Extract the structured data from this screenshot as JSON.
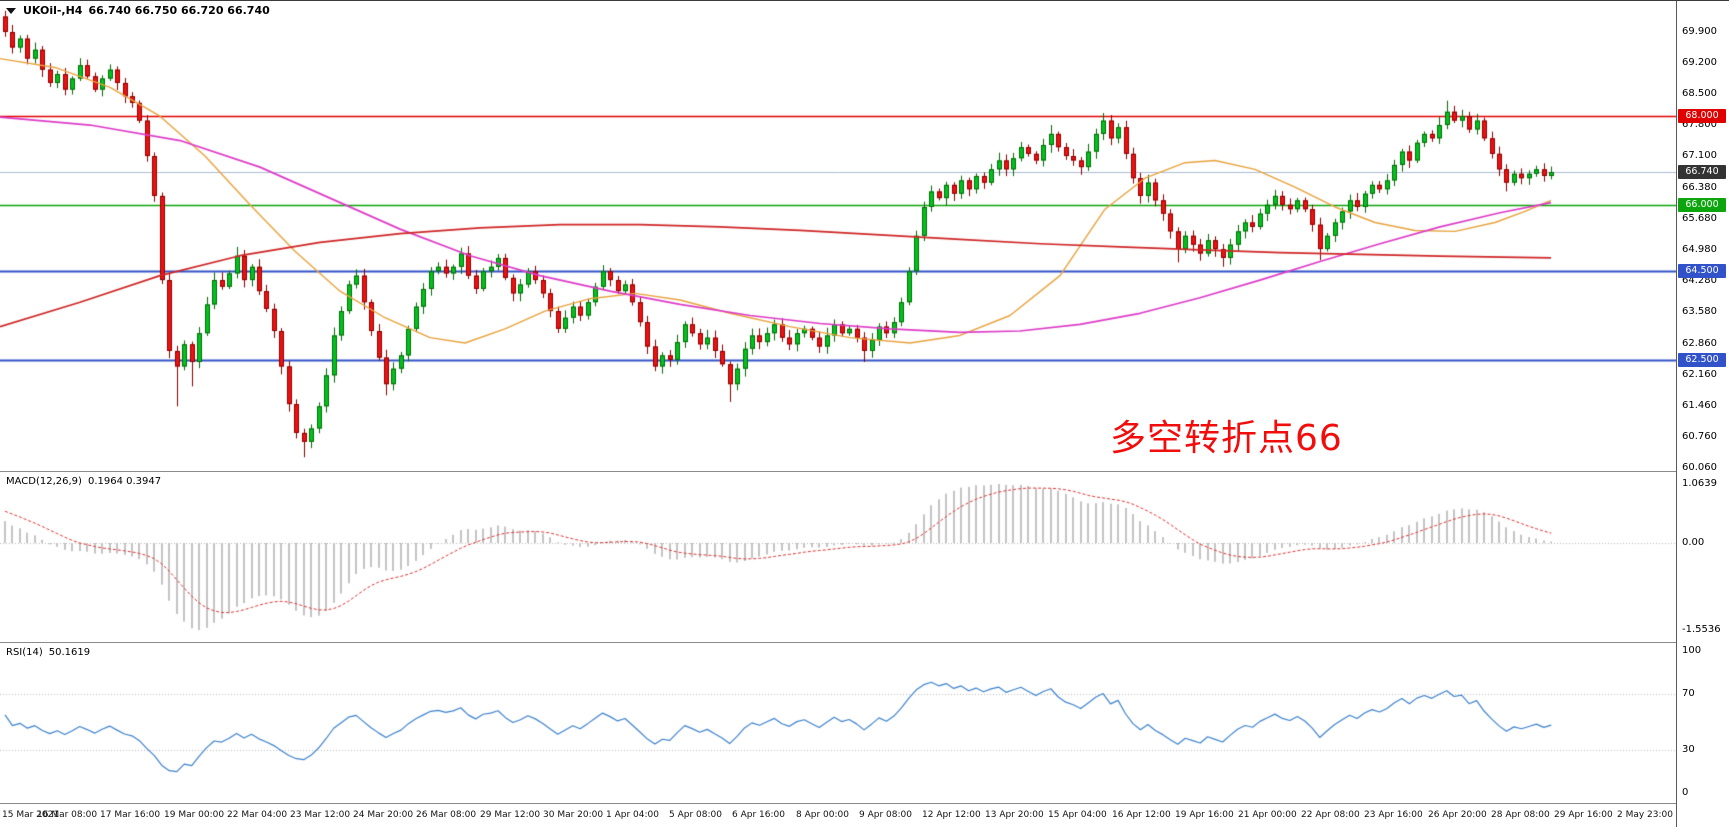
{
  "header": {
    "symbol_period": "UKOil-,H4",
    "ohlc": "66.740 66.750 66.720 66.740"
  },
  "colors": {
    "background": "#ffffff",
    "up_candle_fill": "#00c41e",
    "up_candle_border": "#066906",
    "down_candle_fill": "#f01010",
    "down_candle_border": "#8a0000",
    "ma_fast_orange": "#e8a33d",
    "ma_mid_magenta": "#dd3cc8",
    "ma_slow_red": "#cf2626",
    "macd_histogram": "#c4c4c4",
    "macd_signal": "#e03535",
    "rsi_line": "#3f83cc",
    "level_red": "#e10000",
    "level_green": "#0da50d",
    "level_blue": "#3152c8",
    "current_price_line": "#a9bdd6",
    "current_price_badge_bg": "#333333",
    "grid_dotted": "#bcbcbc",
    "text": "#000000"
  },
  "chart_data": [
    {
      "name": "price",
      "type": "candlestick",
      "symbol": "UKOil-",
      "timeframe": "H4",
      "title_annotation": "多空转折点66",
      "y_range": [
        59.99,
        70.6
      ],
      "y_ticks": [
        "69.900",
        "69.200",
        "68.500",
        "67.800",
        "67.100",
        "66.380",
        "65.680",
        "64.980",
        "64.280",
        "63.580",
        "62.860",
        "62.160",
        "61.460",
        "60.760",
        "60.060"
      ],
      "x_labels": [
        "15 Mar 2021",
        "16 Mar 08:00",
        "17 Mar 16:00",
        "19 Mar 00:00",
        "22 Mar 04:00",
        "23 Mar 12:00",
        "24 Mar 20:00",
        "26 Mar 08:00",
        "29 Mar 12:00",
        "30 Mar 20:00",
        "1 Apr 04:00",
        "5 Apr 08:00",
        "6 Apr 16:00",
        "8 Apr 00:00",
        "9 Apr 08:00",
        "12 Apr 12:00",
        "13 Apr 20:00",
        "15 Apr 04:00",
        "16 Apr 12:00",
        "19 Apr 16:00",
        "21 Apr 00:00",
        "22 Apr 08:00",
        "23 Apr 16:00",
        "26 Apr 20:00",
        "28 Apr 08:00",
        "29 Apr 16:00",
        "2 May 23:00"
      ],
      "first_open": 70.25,
      "closes": [
        69.9,
        69.55,
        69.75,
        69.3,
        69.5,
        69.05,
        68.75,
        68.95,
        68.6,
        68.85,
        69.15,
        68.9,
        68.6,
        68.85,
        69.05,
        68.75,
        68.45,
        68.3,
        67.9,
        67.1,
        66.2,
        64.3,
        62.7,
        62.35,
        62.85,
        62.45,
        63.1,
        63.75,
        64.3,
        64.15,
        64.45,
        64.85,
        64.3,
        64.6,
        64.05,
        63.65,
        63.15,
        62.35,
        61.5,
        60.85,
        60.65,
        60.95,
        61.45,
        62.15,
        63.05,
        63.6,
        64.2,
        64.4,
        63.8,
        63.15,
        62.55,
        61.95,
        62.3,
        62.6,
        63.2,
        63.7,
        64.1,
        64.5,
        64.6,
        64.45,
        64.6,
        64.9,
        64.4,
        64.1,
        64.5,
        64.6,
        64.8,
        64.35,
        64.0,
        64.2,
        64.5,
        64.3,
        64.0,
        63.6,
        63.2,
        63.45,
        63.7,
        63.5,
        63.8,
        64.15,
        64.5,
        64.3,
        64.05,
        64.2,
        63.8,
        63.35,
        62.8,
        62.35,
        62.6,
        62.5,
        62.9,
        63.3,
        63.1,
        62.85,
        63.0,
        62.7,
        62.4,
        61.95,
        62.3,
        62.75,
        63.05,
        62.9,
        63.1,
        63.3,
        63.0,
        62.85,
        63.1,
        63.2,
        63.0,
        62.8,
        63.05,
        63.3,
        63.1,
        63.2,
        63.0,
        62.7,
        62.95,
        63.25,
        63.1,
        63.35,
        63.8,
        64.5,
        65.3,
        65.95,
        66.3,
        66.15,
        66.45,
        66.25,
        66.55,
        66.35,
        66.65,
        66.5,
        66.8,
        67.0,
        66.8,
        67.05,
        67.3,
        67.15,
        67.0,
        67.35,
        67.6,
        67.3,
        67.1,
        67.0,
        66.85,
        67.2,
        67.6,
        67.9,
        67.5,
        67.75,
        67.15,
        66.6,
        66.2,
        66.5,
        66.1,
        65.8,
        65.4,
        65.0,
        65.3,
        65.1,
        64.9,
        65.2,
        65.0,
        64.8,
        65.1,
        65.4,
        65.6,
        65.5,
        65.8,
        66.0,
        66.2,
        66.0,
        65.9,
        66.1,
        65.9,
        65.55,
        65.0,
        65.3,
        65.6,
        65.85,
        66.1,
        65.95,
        66.25,
        66.45,
        66.35,
        66.55,
        66.9,
        67.2,
        67.0,
        67.4,
        67.6,
        67.5,
        67.8,
        68.1,
        67.9,
        68.0,
        67.7,
        67.9,
        67.5,
        67.15,
        66.8,
        66.5,
        66.7,
        66.6,
        66.7,
        66.8,
        66.65,
        66.74
      ],
      "wick_extremes": {
        "23": {
          "low": 61.45
        },
        "25": {
          "low": 61.9
        },
        "31": {
          "high": 65.05
        },
        "40": {
          "low": 60.3
        },
        "51": {
          "low": 61.7
        },
        "97": {
          "low": 61.55
        },
        "115": {
          "low": 62.45
        },
        "140": {
          "high": 67.8
        },
        "147": {
          "high": 68.05
        },
        "157": {
          "low": 64.7
        },
        "163": {
          "low": 64.6
        },
        "176": {
          "low": 64.75
        },
        "193": {
          "high": 68.35
        },
        "201": {
          "low": 66.3
        }
      },
      "horizontal_levels": [
        {
          "price": 68.0,
          "label": "68.000",
          "color_key": "level_red",
          "width": 1.5
        },
        {
          "price": 66.0,
          "label": "66.000",
          "color_key": "level_green",
          "width": 1.5
        },
        {
          "price": 64.5,
          "label": "64.500",
          "color_key": "level_blue",
          "width": 2
        },
        {
          "price": 62.5,
          "label": "62.500",
          "color_key": "level_blue",
          "width": 2
        }
      ],
      "current_price": {
        "price": 66.74,
        "label": "66.740"
      },
      "moving_averages": [
        {
          "name": "ma-fast-orange",
          "color_key": "ma_fast_orange",
          "width": 1.4,
          "points": [
            [
              0,
              69.3
            ],
            [
              55,
              69.1
            ],
            [
              110,
              68.65
            ],
            [
              160,
              68.0
            ],
            [
              205,
              67.1
            ],
            [
              250,
              66.0
            ],
            [
              295,
              64.95
            ],
            [
              340,
              64.05
            ],
            [
              385,
              63.45
            ],
            [
              430,
              63.0
            ],
            [
              465,
              62.88
            ],
            [
              505,
              63.2
            ],
            [
              545,
              63.6
            ],
            [
              590,
              63.88
            ],
            [
              635,
              64.0
            ],
            [
              680,
              63.85
            ],
            [
              730,
              63.55
            ],
            [
              790,
              63.25
            ],
            [
              850,
              63.0
            ],
            [
              910,
              62.88
            ],
            [
              960,
              63.05
            ],
            [
              1010,
              63.5
            ],
            [
              1060,
              64.4
            ],
            [
              1105,
              65.9
            ],
            [
              1145,
              66.6
            ],
            [
              1185,
              66.95
            ],
            [
              1215,
              67.0
            ],
            [
              1255,
              66.8
            ],
            [
              1295,
              66.4
            ],
            [
              1335,
              65.95
            ],
            [
              1375,
              65.6
            ],
            [
              1415,
              65.42
            ],
            [
              1455,
              65.4
            ],
            [
              1495,
              65.6
            ],
            [
              1525,
              65.85
            ],
            [
              1551,
              66.1
            ]
          ]
        },
        {
          "name": "ma-mid-magenta",
          "color_key": "ma_mid_magenta",
          "width": 1.7,
          "points": [
            [
              0,
              67.98
            ],
            [
              90,
              67.8
            ],
            [
              180,
              67.45
            ],
            [
              260,
              66.85
            ],
            [
              330,
              66.15
            ],
            [
              400,
              65.45
            ],
            [
              470,
              64.85
            ],
            [
              540,
              64.4
            ],
            [
              610,
              64.05
            ],
            [
              680,
              63.75
            ],
            [
              750,
              63.5
            ],
            [
              820,
              63.32
            ],
            [
              890,
              63.2
            ],
            [
              960,
              63.12
            ],
            [
              1020,
              63.15
            ],
            [
              1080,
              63.3
            ],
            [
              1140,
              63.55
            ],
            [
              1200,
              63.9
            ],
            [
              1260,
              64.3
            ],
            [
              1320,
              64.72
            ],
            [
              1380,
              65.12
            ],
            [
              1440,
              65.5
            ],
            [
              1500,
              65.82
            ],
            [
              1551,
              66.05
            ]
          ]
        },
        {
          "name": "ma-slow-red",
          "color_key": "ma_slow_red",
          "width": 1.7,
          "points": [
            [
              0,
              63.25
            ],
            [
              80,
              63.8
            ],
            [
              160,
              64.4
            ],
            [
              240,
              64.85
            ],
            [
              320,
              65.15
            ],
            [
              400,
              65.35
            ],
            [
              480,
              65.48
            ],
            [
              560,
              65.55
            ],
            [
              640,
              65.55
            ],
            [
              720,
              65.5
            ],
            [
              800,
              65.42
            ],
            [
              880,
              65.32
            ],
            [
              960,
              65.22
            ],
            [
              1040,
              65.12
            ],
            [
              1120,
              65.05
            ],
            [
              1200,
              64.98
            ],
            [
              1280,
              64.92
            ],
            [
              1360,
              64.88
            ],
            [
              1440,
              64.84
            ],
            [
              1551,
              64.8
            ]
          ]
        }
      ]
    },
    {
      "name": "macd",
      "type": "bar",
      "label": "MACD(12,26,9)",
      "values_label": "0.1964 0.3947",
      "params": {
        "fast": 12,
        "slow": 26,
        "signal": 9
      },
      "y_ticks": [
        "1.0639",
        "0.00",
        "-1.5536"
      ],
      "derived_from": "price.closes"
    },
    {
      "name": "rsi",
      "type": "line",
      "label": "RSI(14)",
      "value_label": "50.1619",
      "period": 14,
      "levels": [
        70,
        30
      ],
      "y_ticks": [
        "100",
        "70",
        "30",
        "0"
      ],
      "derived_from": "price.closes"
    }
  ]
}
